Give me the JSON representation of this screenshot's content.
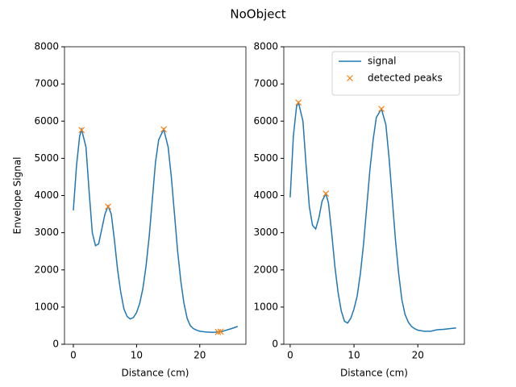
{
  "title": "NoObject",
  "chart_data": [
    {
      "type": "line",
      "x_label": "Distance (cm)",
      "y_label": "Envelope Signal",
      "xlim": [
        -1.4,
        27.3
      ],
      "xticks": [
        0,
        10,
        20
      ],
      "ylim": [
        0,
        8000
      ],
      "yticks": [
        0,
        1000,
        2000,
        3000,
        4000,
        5000,
        6000,
        7000,
        8000
      ],
      "series": [
        {
          "style": "line",
          "color": "#1f77b4",
          "x": [
            0,
            0.5,
            1,
            1.3,
            2,
            2.5,
            3,
            3.5,
            4,
            4.5,
            5,
            5.5,
            6,
            6.5,
            7,
            7.5,
            8,
            8.5,
            9,
            9.5,
            10,
            10.5,
            11,
            11.5,
            12,
            12.5,
            13,
            13.5,
            14.3,
            15,
            15.5,
            16,
            16.5,
            17,
            17.5,
            18,
            18.5,
            19,
            19.5,
            20,
            21,
            22,
            23,
            23.5,
            24,
            25,
            26
          ],
          "values": [
            3600,
            4800,
            5600,
            5780,
            5300,
            4100,
            3000,
            2650,
            2700,
            3100,
            3500,
            3720,
            3500,
            2800,
            2000,
            1400,
            950,
            750,
            680,
            720,
            850,
            1100,
            1500,
            2100,
            2900,
            3900,
            4900,
            5500,
            5780,
            5300,
            4500,
            3500,
            2500,
            1700,
            1100,
            700,
            500,
            420,
            380,
            350,
            330,
            320,
            330,
            340,
            370,
            420,
            480
          ]
        },
        {
          "style": "x",
          "color": "#ff7f0e",
          "x": [
            1.3,
            5.5,
            14.3,
            22.9,
            23.3
          ],
          "values": [
            5760,
            3700,
            5780,
            330,
            340
          ]
        }
      ]
    },
    {
      "type": "line",
      "x_label": "Distance (cm)",
      "legend": "upper right",
      "xlim": [
        -1.0,
        27.3
      ],
      "xticks": [
        0,
        10,
        20
      ],
      "ylim": [
        0,
        8000
      ],
      "yticks": [
        0,
        1000,
        2000,
        3000,
        4000,
        5000,
        6000,
        7000,
        8000
      ],
      "series": [
        {
          "name": "signal",
          "style": "line",
          "color": "#1f77b4",
          "x": [
            0,
            0.5,
            1,
            1.3,
            2,
            2.5,
            3,
            3.5,
            4,
            4.5,
            5,
            5.6,
            6,
            6.5,
            7,
            7.5,
            8,
            8.5,
            9,
            9.5,
            10,
            10.5,
            11,
            11.5,
            12,
            12.5,
            13,
            13.5,
            14.3,
            15,
            15.5,
            16,
            16.5,
            17,
            17.5,
            18,
            18.5,
            19,
            19.5,
            20,
            21,
            22,
            23,
            24,
            25,
            26
          ],
          "values": [
            3950,
            5600,
            6400,
            6500,
            6000,
            4800,
            3700,
            3200,
            3100,
            3400,
            3850,
            4050,
            3800,
            3000,
            2100,
            1400,
            900,
            620,
            570,
            700,
            950,
            1300,
            1900,
            2700,
            3700,
            4700,
            5500,
            6100,
            6330,
            5900,
            5000,
            3900,
            2800,
            1900,
            1200,
            800,
            600,
            480,
            420,
            380,
            350,
            350,
            390,
            400,
            420,
            440
          ]
        },
        {
          "name": "detected peaks",
          "style": "x",
          "color": "#ff7f0e",
          "x": [
            1.3,
            5.6,
            14.3
          ],
          "values": [
            6500,
            4050,
            6330
          ]
        }
      ]
    }
  ]
}
